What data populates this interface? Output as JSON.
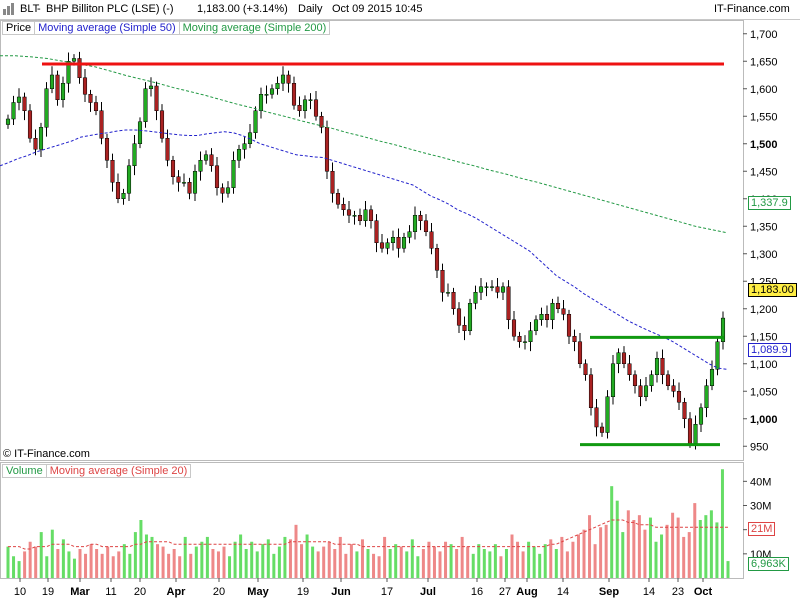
{
  "header": {
    "symbol": "BLT",
    "name": "BHP Billiton PLC (LSE) (-)",
    "last": "1,183.00 (+3.14%)",
    "period": "Daily",
    "datetime": "Oct 09 2015 10:45",
    "brand": "IT-Finance.com"
  },
  "legend_price": [
    "Price",
    "Moving average (Simple 50)",
    "Moving average (Simple 200)"
  ],
  "legend_volume": [
    "Volume",
    "Moving average (Simple 20)"
  ],
  "copyright": "© IT-Finance.com",
  "tags": {
    "ma200": "1,337.9",
    "last": "1,183.00",
    "ma50": "1,089.9",
    "vol_ma": "21M",
    "vol_last": "6,963K"
  },
  "colors": {
    "up": "#22aa22",
    "down": "#aa2222",
    "wick": "#000000",
    "ma50": "#2222cc",
    "ma200": "#229944",
    "resistance": "#ee1111",
    "support": "#119911",
    "vol_up": "#66dd66",
    "vol_down": "#ee8888",
    "vol_ma": "#dd4444"
  },
  "chart_data": [
    {
      "type": "candlestick",
      "title": "BLT - BHP Billiton PLC (LSE) (-)",
      "ylim": [
        925,
        1725
      ],
      "y_ticks": [
        "950",
        "1,000",
        "1,050",
        "1,100",
        "1,150",
        "1,200",
        "1,250",
        "1,300",
        "1,350",
        "1,400",
        "1,450",
        "1,500",
        "1,550",
        "1,600",
        "1,650",
        "1,700"
      ],
      "x_ticks": [
        "10",
        "19",
        "Mar",
        "11",
        "20",
        "Apr",
        "20",
        "May",
        "19",
        "Jun",
        "17",
        "Jul",
        "16",
        "27",
        "Aug",
        "14",
        "Sep",
        "14",
        "23",
        "Oct"
      ],
      "close": [
        1545,
        1575,
        1585,
        1560,
        1510,
        1490,
        1530,
        1600,
        1625,
        1580,
        1610,
        1650,
        1655,
        1620,
        1590,
        1575,
        1560,
        1510,
        1470,
        1430,
        1400,
        1410,
        1460,
        1500,
        1540,
        1600,
        1605,
        1560,
        1510,
        1470,
        1440,
        1430,
        1430,
        1410,
        1450,
        1470,
        1480,
        1460,
        1420,
        1410,
        1420,
        1470,
        1490,
        1500,
        1520,
        1560,
        1590,
        1590,
        1600,
        1610,
        1625,
        1610,
        1570,
        1560,
        1580,
        1580,
        1550,
        1530,
        1450,
        1410,
        1390,
        1380,
        1370,
        1370,
        1360,
        1380,
        1360,
        1320,
        1310,
        1320,
        1330,
        1310,
        1330,
        1340,
        1370,
        1360,
        1340,
        1310,
        1270,
        1230,
        1230,
        1200,
        1170,
        1160,
        1210,
        1230,
        1240,
        1240,
        1240,
        1230,
        1240,
        1180,
        1150,
        1140,
        1140,
        1160,
        1180,
        1190,
        1180,
        1210,
        1200,
        1190,
        1150,
        1140,
        1100,
        1080,
        1020,
        985,
        975,
        1040,
        1100,
        1120,
        1100,
        1080,
        1060,
        1040,
        1060,
        1080,
        1110,
        1080,
        1060,
        1050,
        1030,
        1000,
        955,
        990,
        1020,
        1060,
        1090,
        1140,
        1183
      ],
      "ma50": [
        1460,
        1466,
        1473,
        1478,
        1485,
        1490,
        1495,
        1500,
        1505,
        1512,
        1515,
        1518,
        1520,
        1523,
        1525,
        1525,
        1524,
        1522,
        1520,
        1518,
        1516,
        1515,
        1515,
        1518,
        1520,
        1522,
        1520,
        1515,
        1508,
        1500,
        1495,
        1490,
        1485,
        1480,
        1478,
        1476,
        1475,
        1470,
        1465,
        1460,
        1455,
        1450,
        1445,
        1440,
        1435,
        1430,
        1425,
        1415,
        1405,
        1398,
        1390,
        1380,
        1373,
        1365,
        1355,
        1345,
        1335,
        1325,
        1315,
        1305,
        1290,
        1275,
        1260,
        1250,
        1240,
        1228,
        1218,
        1208,
        1198,
        1188,
        1178,
        1170,
        1162,
        1155,
        1148,
        1140,
        1130,
        1120,
        1110,
        1100,
        1092,
        1090
      ],
      "ma200": [
        1660,
        1660,
        1658,
        1655,
        1650,
        1645,
        1640,
        1632,
        1624,
        1617,
        1610,
        1602,
        1595,
        1588,
        1580,
        1572,
        1565,
        1557,
        1550,
        1542,
        1535,
        1528,
        1520,
        1513,
        1505,
        1498,
        1490,
        1482,
        1475,
        1467,
        1460,
        1452,
        1445,
        1437,
        1430,
        1422,
        1414,
        1406,
        1398,
        1390,
        1382,
        1374,
        1366,
        1358,
        1350,
        1344,
        1338
      ],
      "resistance": 1645,
      "support_low": 953,
      "support_high": 1148
    },
    {
      "type": "bar",
      "title": "Volume",
      "ylim": [
        0,
        48
      ],
      "y_ticks": [
        "10M",
        "20M",
        "30M",
        "40M"
      ],
      "values": [
        13,
        9,
        7,
        11,
        15,
        13,
        19,
        9,
        20,
        12,
        16,
        11,
        8,
        12,
        10,
        14,
        12,
        10,
        13,
        9,
        11,
        14,
        10,
        19,
        24,
        18,
        17,
        14,
        13,
        10,
        12,
        9,
        17,
        10,
        13,
        15,
        17,
        12,
        11,
        13,
        9,
        15,
        18,
        12,
        15,
        11,
        14,
        16,
        10,
        13,
        17,
        16,
        22,
        14,
        18,
        13,
        11,
        13,
        15,
        12,
        17,
        10,
        14,
        11,
        16,
        12,
        10,
        9,
        17,
        12,
        14,
        13,
        11,
        16,
        9,
        12,
        15,
        13,
        11,
        15,
        14,
        12,
        17,
        13,
        10,
        14,
        12,
        11,
        14,
        9,
        12,
        18,
        15,
        11,
        15,
        13,
        10,
        14,
        16,
        12,
        17,
        11,
        15,
        18,
        20,
        26,
        14,
        21,
        22,
        38,
        32,
        19,
        28,
        24,
        26,
        20,
        25,
        15,
        18,
        22,
        27,
        25,
        17,
        19,
        31,
        24,
        26,
        28,
        23,
        45,
        7
      ],
      "ma": [
        13,
        13,
        13,
        12,
        12,
        13,
        13,
        13,
        14,
        14,
        14,
        14,
        13,
        13,
        13,
        14,
        14,
        13,
        13,
        13,
        13,
        13,
        13,
        14,
        14,
        15,
        15,
        15,
        15,
        15,
        14,
        14,
        14,
        14,
        14,
        14,
        14,
        14,
        14,
        14,
        14,
        14,
        14,
        14,
        14,
        14,
        14,
        14,
        14,
        14,
        14,
        15,
        15,
        15,
        15,
        15,
        15,
        15,
        15,
        14,
        14,
        14,
        14,
        14,
        13,
        13,
        13,
        13,
        13,
        13,
        13,
        13,
        13,
        13,
        13,
        13,
        13,
        13,
        13,
        13,
        13,
        13,
        13,
        13,
        13,
        13,
        13,
        13,
        13,
        13,
        13,
        13,
        13,
        13,
        13,
        13,
        13,
        13,
        14,
        14,
        15,
        16,
        17,
        18,
        19,
        20,
        21,
        22,
        23,
        24,
        24,
        24,
        23,
        23,
        22,
        22,
        22,
        21,
        21,
        21,
        21,
        21,
        21,
        21,
        21,
        21,
        21,
        21,
        21,
        21,
        21
      ]
    }
  ]
}
